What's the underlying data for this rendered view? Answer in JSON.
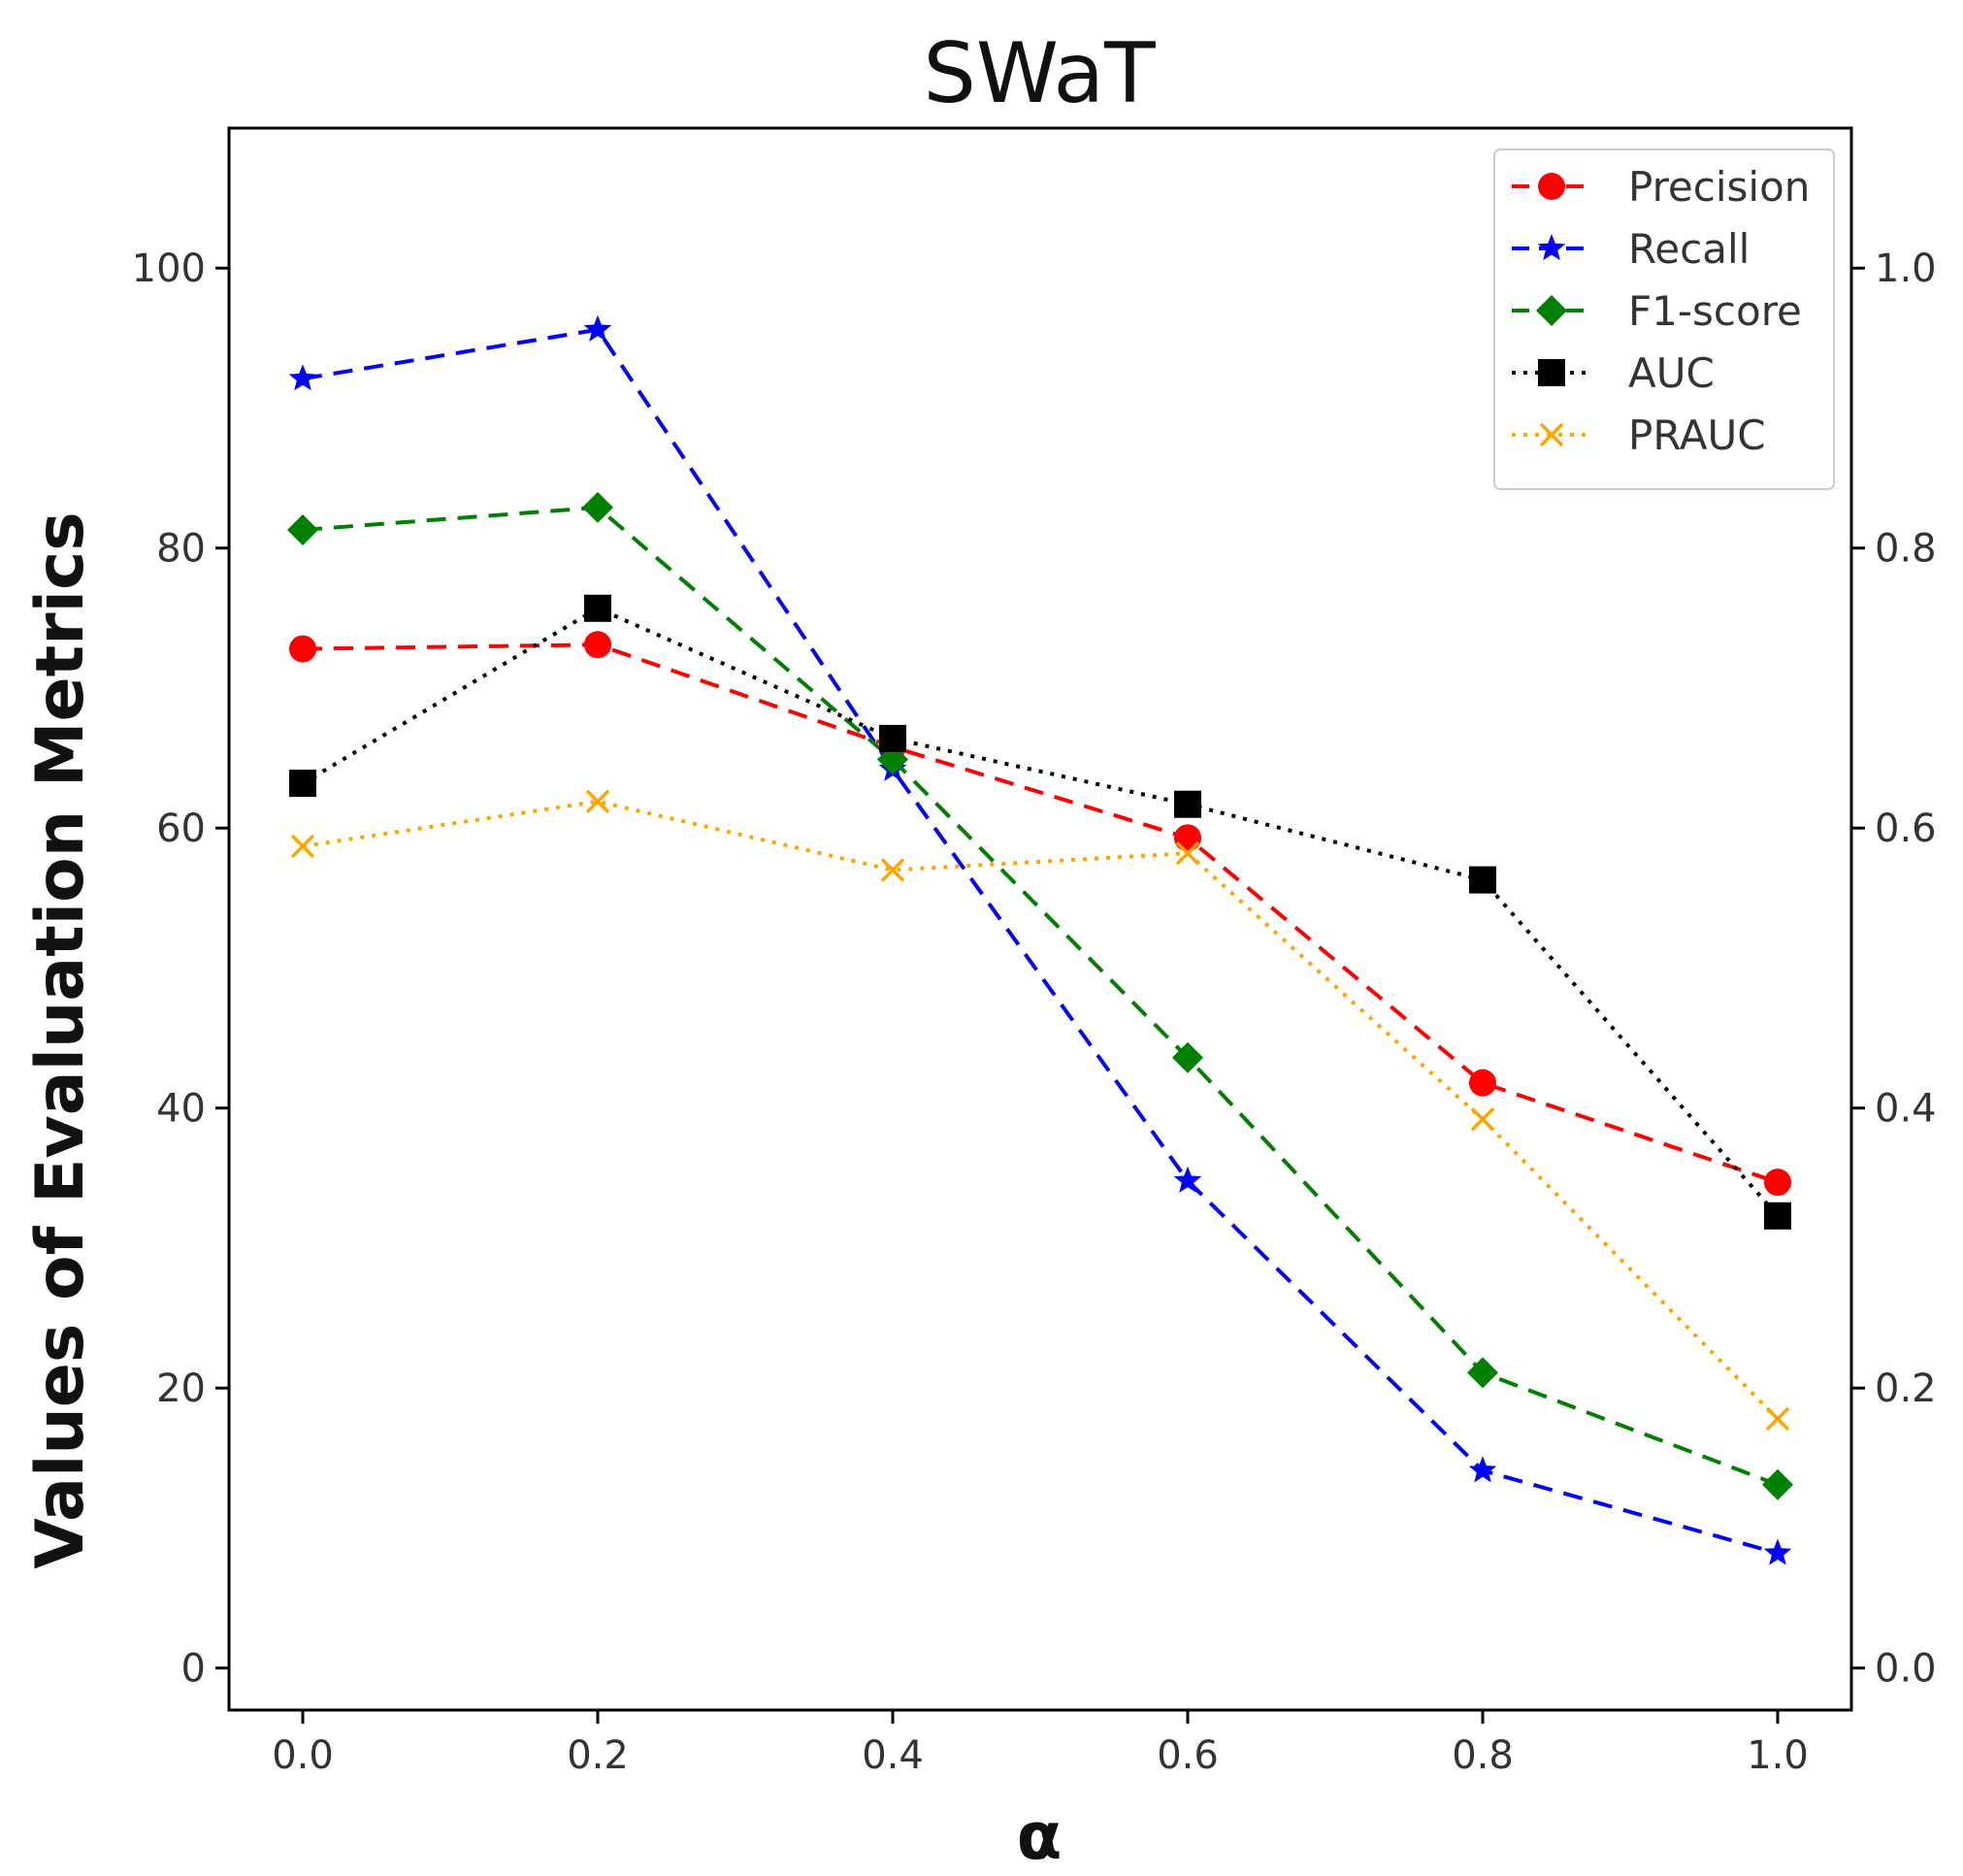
{
  "chart_data": {
    "type": "line",
    "title": "SWaT",
    "xlabel": "α",
    "ylabel": "Values of Evaluation Metrics",
    "x": [
      0.0,
      0.2,
      0.4,
      0.6,
      0.8,
      1.0
    ],
    "x_tick_labels": [
      "0.0",
      "0.2",
      "0.4",
      "0.6",
      "0.8",
      "1.0"
    ],
    "xlim": [
      -0.05,
      1.05
    ],
    "y_left_ticks": [
      "0",
      "20",
      "40",
      "60",
      "80",
      "100"
    ],
    "ylim_left": [
      -3,
      110
    ],
    "y_right_ticks": [
      "0.0",
      "0.2",
      "0.4",
      "0.6",
      "0.8",
      "1.0"
    ],
    "ylim_right": [
      -0.03,
      1.1
    ],
    "grid": false,
    "legend_position": "top-right",
    "series": [
      {
        "name": "Precision",
        "axis": "left",
        "color": "#ff0000",
        "marker": "circle",
        "linestyle": "dashed",
        "values": [
          72.8,
          73.1,
          65.8,
          59.3,
          41.8,
          34.7
        ]
      },
      {
        "name": "Recall",
        "axis": "left",
        "color": "#0000ff",
        "marker": "star",
        "linestyle": "dashed",
        "values": [
          92.1,
          95.6,
          64.2,
          34.8,
          14.1,
          8.2
        ]
      },
      {
        "name": "F1-score",
        "axis": "left",
        "color": "#008000",
        "marker": "diamond",
        "linestyle": "dashed",
        "values": [
          81.3,
          82.9,
          64.9,
          43.6,
          21.1,
          13.1
        ]
      },
      {
        "name": "AUC",
        "axis": "right",
        "color": "#000000",
        "marker": "square",
        "linestyle": "dotted",
        "values": [
          0.632,
          0.757,
          0.664,
          0.617,
          0.563,
          0.323
        ]
      },
      {
        "name": "PRAUC",
        "axis": "right",
        "color": "#ffa500",
        "marker": "x",
        "linestyle": "dotted",
        "values": [
          0.587,
          0.619,
          0.57,
          0.582,
          0.392,
          0.178
        ]
      }
    ]
  }
}
